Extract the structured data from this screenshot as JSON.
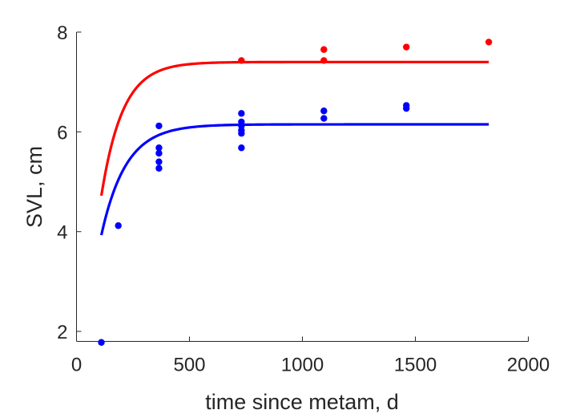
{
  "chart_data": {
    "type": "scatter",
    "xlabel": "time since metam, d",
    "ylabel": "SVL, cm",
    "xlim": [
      0,
      2000
    ],
    "ylim": [
      1.8,
      8
    ],
    "xticks": [
      0,
      500,
      1000,
      1500,
      2000
    ],
    "xtick_labels": [
      "0",
      "500",
      "1000",
      "1500",
      "2000"
    ],
    "yticks": [
      2,
      4,
      6,
      8
    ],
    "ytick_labels": [
      "2",
      "4",
      "6",
      "8"
    ],
    "grid": false,
    "legend": "none",
    "series": [
      {
        "color": "#ff0000",
        "points": [
          {
            "x": 730,
            "y": 7.43
          },
          {
            "x": 1095,
            "y": 7.65
          },
          {
            "x": 1095,
            "y": 7.43
          },
          {
            "x": 1460,
            "y": 7.7
          },
          {
            "x": 1825,
            "y": 7.8
          }
        ],
        "curve": {
          "x_start": 110,
          "x_end": 1825,
          "y_inf": 7.4,
          "y_start": 4.72,
          "k": 0.0106
        }
      },
      {
        "color": "#0000ff",
        "points": [
          {
            "x": 110,
            "y": 1.78
          },
          {
            "x": 185,
            "y": 4.12
          },
          {
            "x": 365,
            "y": 6.12
          },
          {
            "x": 365,
            "y": 5.68
          },
          {
            "x": 365,
            "y": 5.57
          },
          {
            "x": 365,
            "y": 5.4
          },
          {
            "x": 365,
            "y": 5.27
          },
          {
            "x": 730,
            "y": 6.37
          },
          {
            "x": 730,
            "y": 6.2
          },
          {
            "x": 730,
            "y": 6.12
          },
          {
            "x": 730,
            "y": 6.03
          },
          {
            "x": 730,
            "y": 5.97
          },
          {
            "x": 730,
            "y": 5.68
          },
          {
            "x": 1095,
            "y": 6.42
          },
          {
            "x": 1095,
            "y": 6.27
          },
          {
            "x": 1460,
            "y": 6.53
          },
          {
            "x": 1460,
            "y": 6.47
          }
        ],
        "curve": {
          "x_start": 110,
          "x_end": 1825,
          "y_inf": 6.15,
          "y_start": 3.93,
          "k": 0.0092
        }
      }
    ]
  }
}
